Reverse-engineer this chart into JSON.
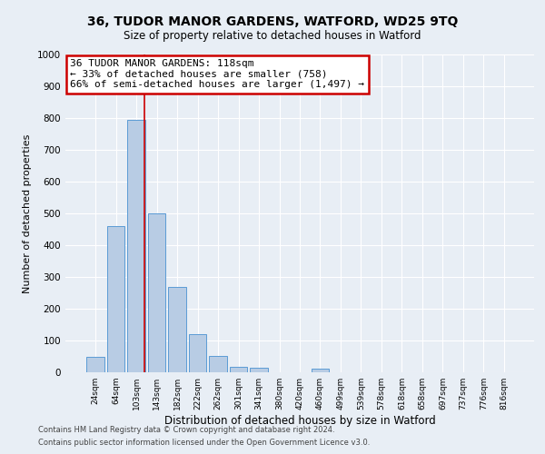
{
  "title": "36, TUDOR MANOR GARDENS, WATFORD, WD25 9TQ",
  "subtitle": "Size of property relative to detached houses in Watford",
  "xlabel": "Distribution of detached houses by size in Watford",
  "ylabel": "Number of detached properties",
  "bar_labels": [
    "24sqm",
    "64sqm",
    "103sqm",
    "143sqm",
    "182sqm",
    "222sqm",
    "262sqm",
    "301sqm",
    "341sqm",
    "380sqm",
    "420sqm",
    "460sqm",
    "499sqm",
    "539sqm",
    "578sqm",
    "618sqm",
    "658sqm",
    "697sqm",
    "737sqm",
    "776sqm",
    "816sqm"
  ],
  "bar_values": [
    50,
    460,
    795,
    500,
    270,
    120,
    52,
    18,
    13,
    0,
    0,
    12,
    0,
    0,
    0,
    0,
    0,
    0,
    0,
    0,
    0
  ],
  "bar_color": "#b8cce4",
  "bar_edge_color": "#5b9bd5",
  "red_line_x": 2.4,
  "annotation_title": "36 TUDOR MANOR GARDENS: 118sqm",
  "annotation_line1": "← 33% of detached houses are smaller (758)",
  "annotation_line2": "66% of semi-detached houses are larger (1,497) →",
  "annotation_box_color": "#ffffff",
  "annotation_box_edge": "#cc0000",
  "red_line_color": "#cc0000",
  "background_color": "#e8eef5",
  "plot_bg_color": "#e8eef5",
  "grid_color": "#ffffff",
  "ylim": [
    0,
    1000
  ],
  "yticks": [
    0,
    100,
    200,
    300,
    400,
    500,
    600,
    700,
    800,
    900,
    1000
  ],
  "footer_line1": "Contains HM Land Registry data © Crown copyright and database right 2024.",
  "footer_line2": "Contains public sector information licensed under the Open Government Licence v3.0."
}
